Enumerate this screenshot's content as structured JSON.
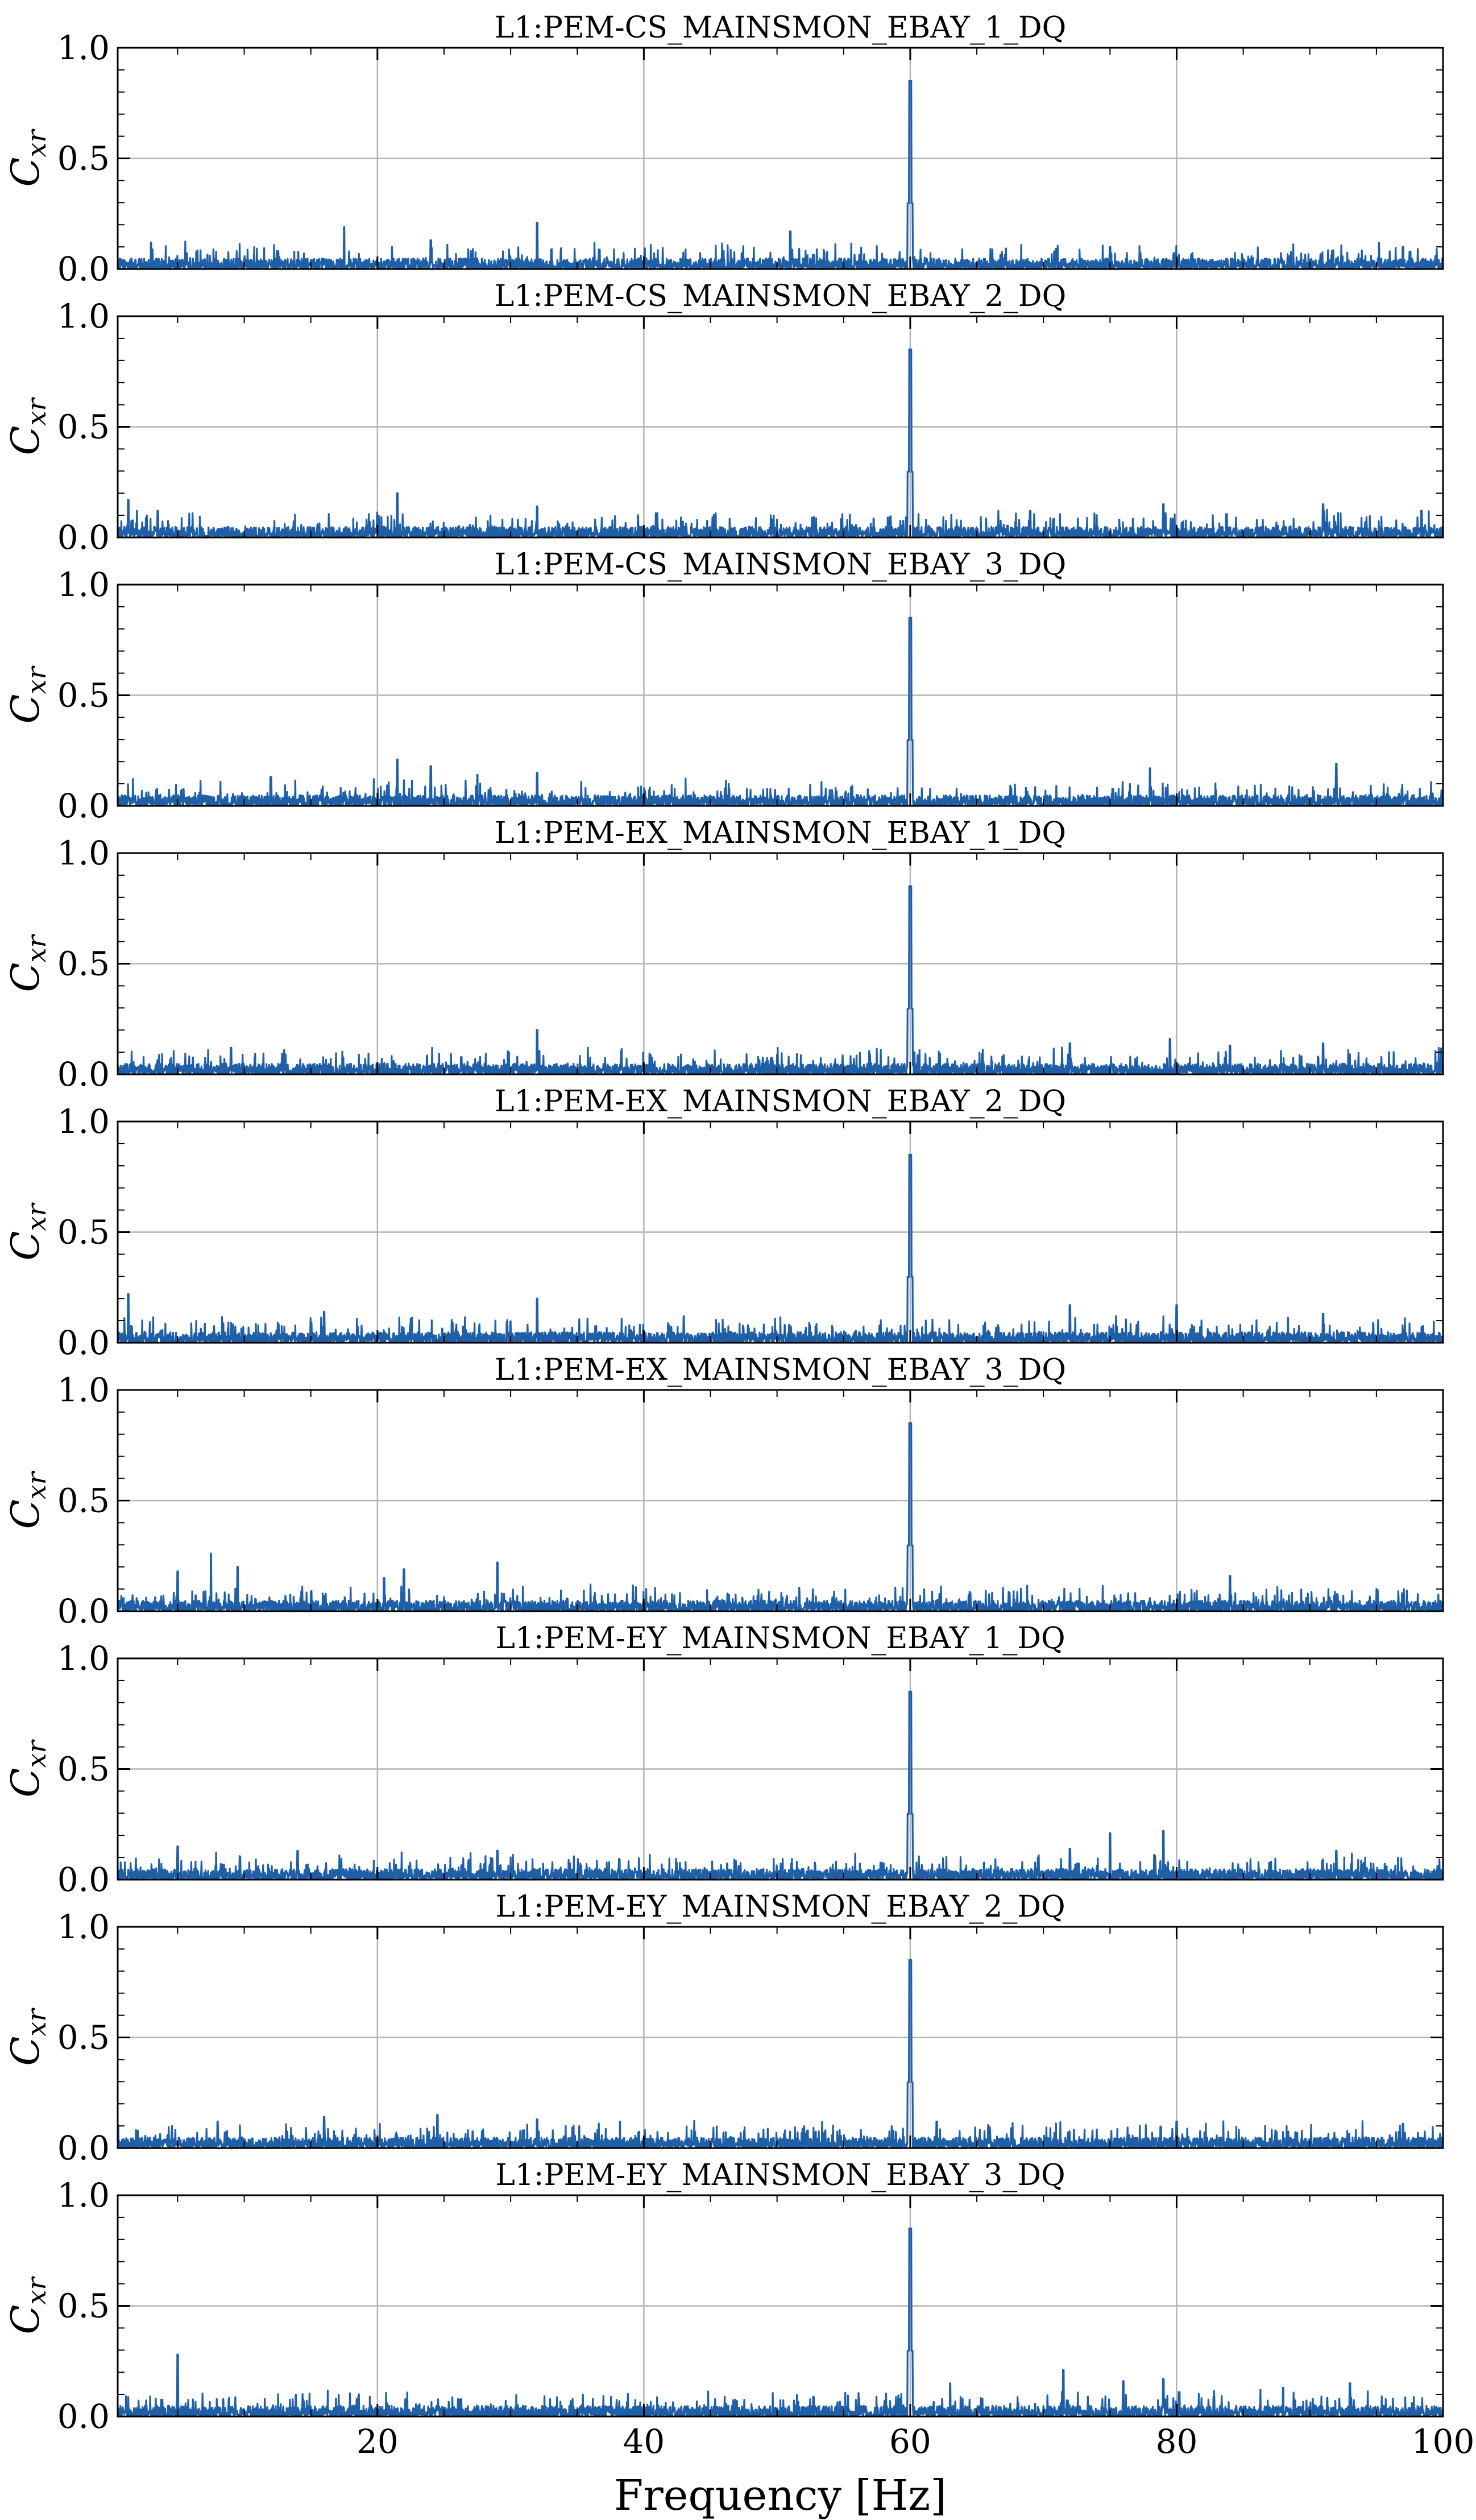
{
  "chart_data": {
    "type": "line",
    "xlabel": "Frequency [Hz]",
    "ylabel": "C",
    "ylabel_sub": "xr",
    "xlim": [
      0.5,
      100
    ],
    "ylim": [
      0,
      1.0
    ],
    "xticks": [
      20,
      40,
      60,
      80,
      100
    ],
    "yticks": [
      0.0,
      0.5,
      1.0
    ],
    "ytick_labels": [
      "0.0",
      "0.5",
      "1.0"
    ],
    "grid": true,
    "line_color": "#1f5fa8",
    "noise_floor": 0.03,
    "panels": [
      {
        "title": "L1:PEM-CS_MAINSMON_EBAY_1_DQ",
        "peaks": [
          [
            60,
            0.85
          ],
          [
            17.5,
            0.19
          ],
          [
            32,
            0.21
          ],
          [
            51,
            0.17
          ],
          [
            3,
            0.12
          ],
          [
            24,
            0.13
          ],
          [
            75,
            0.1
          ],
          [
            97,
            0.1
          ]
        ]
      },
      {
        "title": "L1:PEM-CS_MAINSMON_EBAY_2_DQ",
        "peaks": [
          [
            60,
            0.85
          ],
          [
            1.3,
            0.17
          ],
          [
            21.5,
            0.2
          ],
          [
            32,
            0.14
          ],
          [
            79,
            0.15
          ],
          [
            91,
            0.15
          ],
          [
            3.5,
            0.12
          ],
          [
            69,
            0.12
          ]
        ]
      },
      {
        "title": "L1:PEM-CS_MAINSMON_EBAY_3_DQ",
        "peaks": [
          [
            60,
            0.85
          ],
          [
            21.5,
            0.21
          ],
          [
            24,
            0.18
          ],
          [
            32,
            0.15
          ],
          [
            92,
            0.19
          ],
          [
            78,
            0.17
          ],
          [
            27.5,
            0.14
          ],
          [
            12,
            0.13
          ]
        ]
      },
      {
        "title": "L1:PEM-EX_MAINSMON_EBAY_1_DQ",
        "peaks": [
          [
            60,
            0.85
          ],
          [
            32,
            0.2
          ],
          [
            72,
            0.14
          ],
          [
            79.5,
            0.16
          ],
          [
            84,
            0.13
          ],
          [
            91,
            0.14
          ],
          [
            9,
            0.12
          ],
          [
            13,
            0.11
          ]
        ]
      },
      {
        "title": "L1:PEM-EX_MAINSMON_EBAY_2_DQ",
        "peaks": [
          [
            60,
            0.85
          ],
          [
            1.3,
            0.22
          ],
          [
            32,
            0.2
          ],
          [
            72,
            0.17
          ],
          [
            80,
            0.17
          ],
          [
            16,
            0.14
          ],
          [
            43,
            0.12
          ],
          [
            91,
            0.13
          ]
        ]
      },
      {
        "title": "L1:PEM-EX_MAINSMON_EBAY_3_DQ",
        "peaks": [
          [
            60,
            0.85
          ],
          [
            7.5,
            0.26
          ],
          [
            9.5,
            0.2
          ],
          [
            5,
            0.18
          ],
          [
            22,
            0.19
          ],
          [
            29,
            0.22
          ],
          [
            84,
            0.16
          ],
          [
            20.5,
            0.15
          ]
        ]
      },
      {
        "title": "L1:PEM-EY_MAINSMON_EBAY_1_DQ",
        "peaks": [
          [
            60,
            0.85
          ],
          [
            75,
            0.21
          ],
          [
            79,
            0.22
          ],
          [
            14,
            0.13
          ],
          [
            29,
            0.13
          ],
          [
            5,
            0.15
          ],
          [
            72,
            0.14
          ],
          [
            92,
            0.13
          ]
        ]
      },
      {
        "title": "L1:PEM-EY_MAINSMON_EBAY_2_DQ",
        "peaks": [
          [
            60,
            0.85
          ],
          [
            16,
            0.14
          ],
          [
            24.5,
            0.15
          ],
          [
            32,
            0.13
          ],
          [
            80,
            0.12
          ],
          [
            62,
            0.12
          ],
          [
            97,
            0.11
          ],
          [
            8,
            0.12
          ]
        ]
      },
      {
        "title": "L1:PEM-EY_MAINSMON_EBAY_3_DQ",
        "peaks": [
          [
            60,
            0.85
          ],
          [
            5,
            0.28
          ],
          [
            71.5,
            0.21
          ],
          [
            79,
            0.17
          ],
          [
            76,
            0.16
          ],
          [
            93,
            0.15
          ],
          [
            88,
            0.13
          ],
          [
            63,
            0.15
          ]
        ]
      }
    ]
  }
}
